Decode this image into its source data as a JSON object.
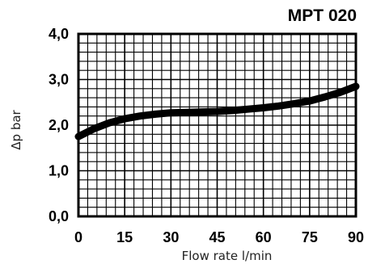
{
  "chart_data": {
    "type": "line",
    "title": "MPT 020",
    "xlabel": "Flow rate l/min",
    "ylabel": "Δp bar",
    "xlim": [
      0,
      90
    ],
    "ylim": [
      0,
      4
    ],
    "x_ticks": [
      "0",
      "15",
      "30",
      "45",
      "60",
      "75",
      "90"
    ],
    "y_ticks": [
      "0,0",
      "1,0",
      "2,0",
      "3,0",
      "4,0"
    ],
    "grid": true,
    "series": [
      {
        "x": [
          0,
          5,
          10,
          15,
          20,
          25,
          30,
          35,
          40,
          45,
          50,
          55,
          60,
          65,
          70,
          75,
          80,
          85,
          90
        ],
        "y": [
          1.75,
          1.92,
          2.05,
          2.14,
          2.2,
          2.24,
          2.27,
          2.28,
          2.29,
          2.3,
          2.32,
          2.35,
          2.38,
          2.42,
          2.47,
          2.53,
          2.62,
          2.72,
          2.85
        ]
      }
    ]
  }
}
